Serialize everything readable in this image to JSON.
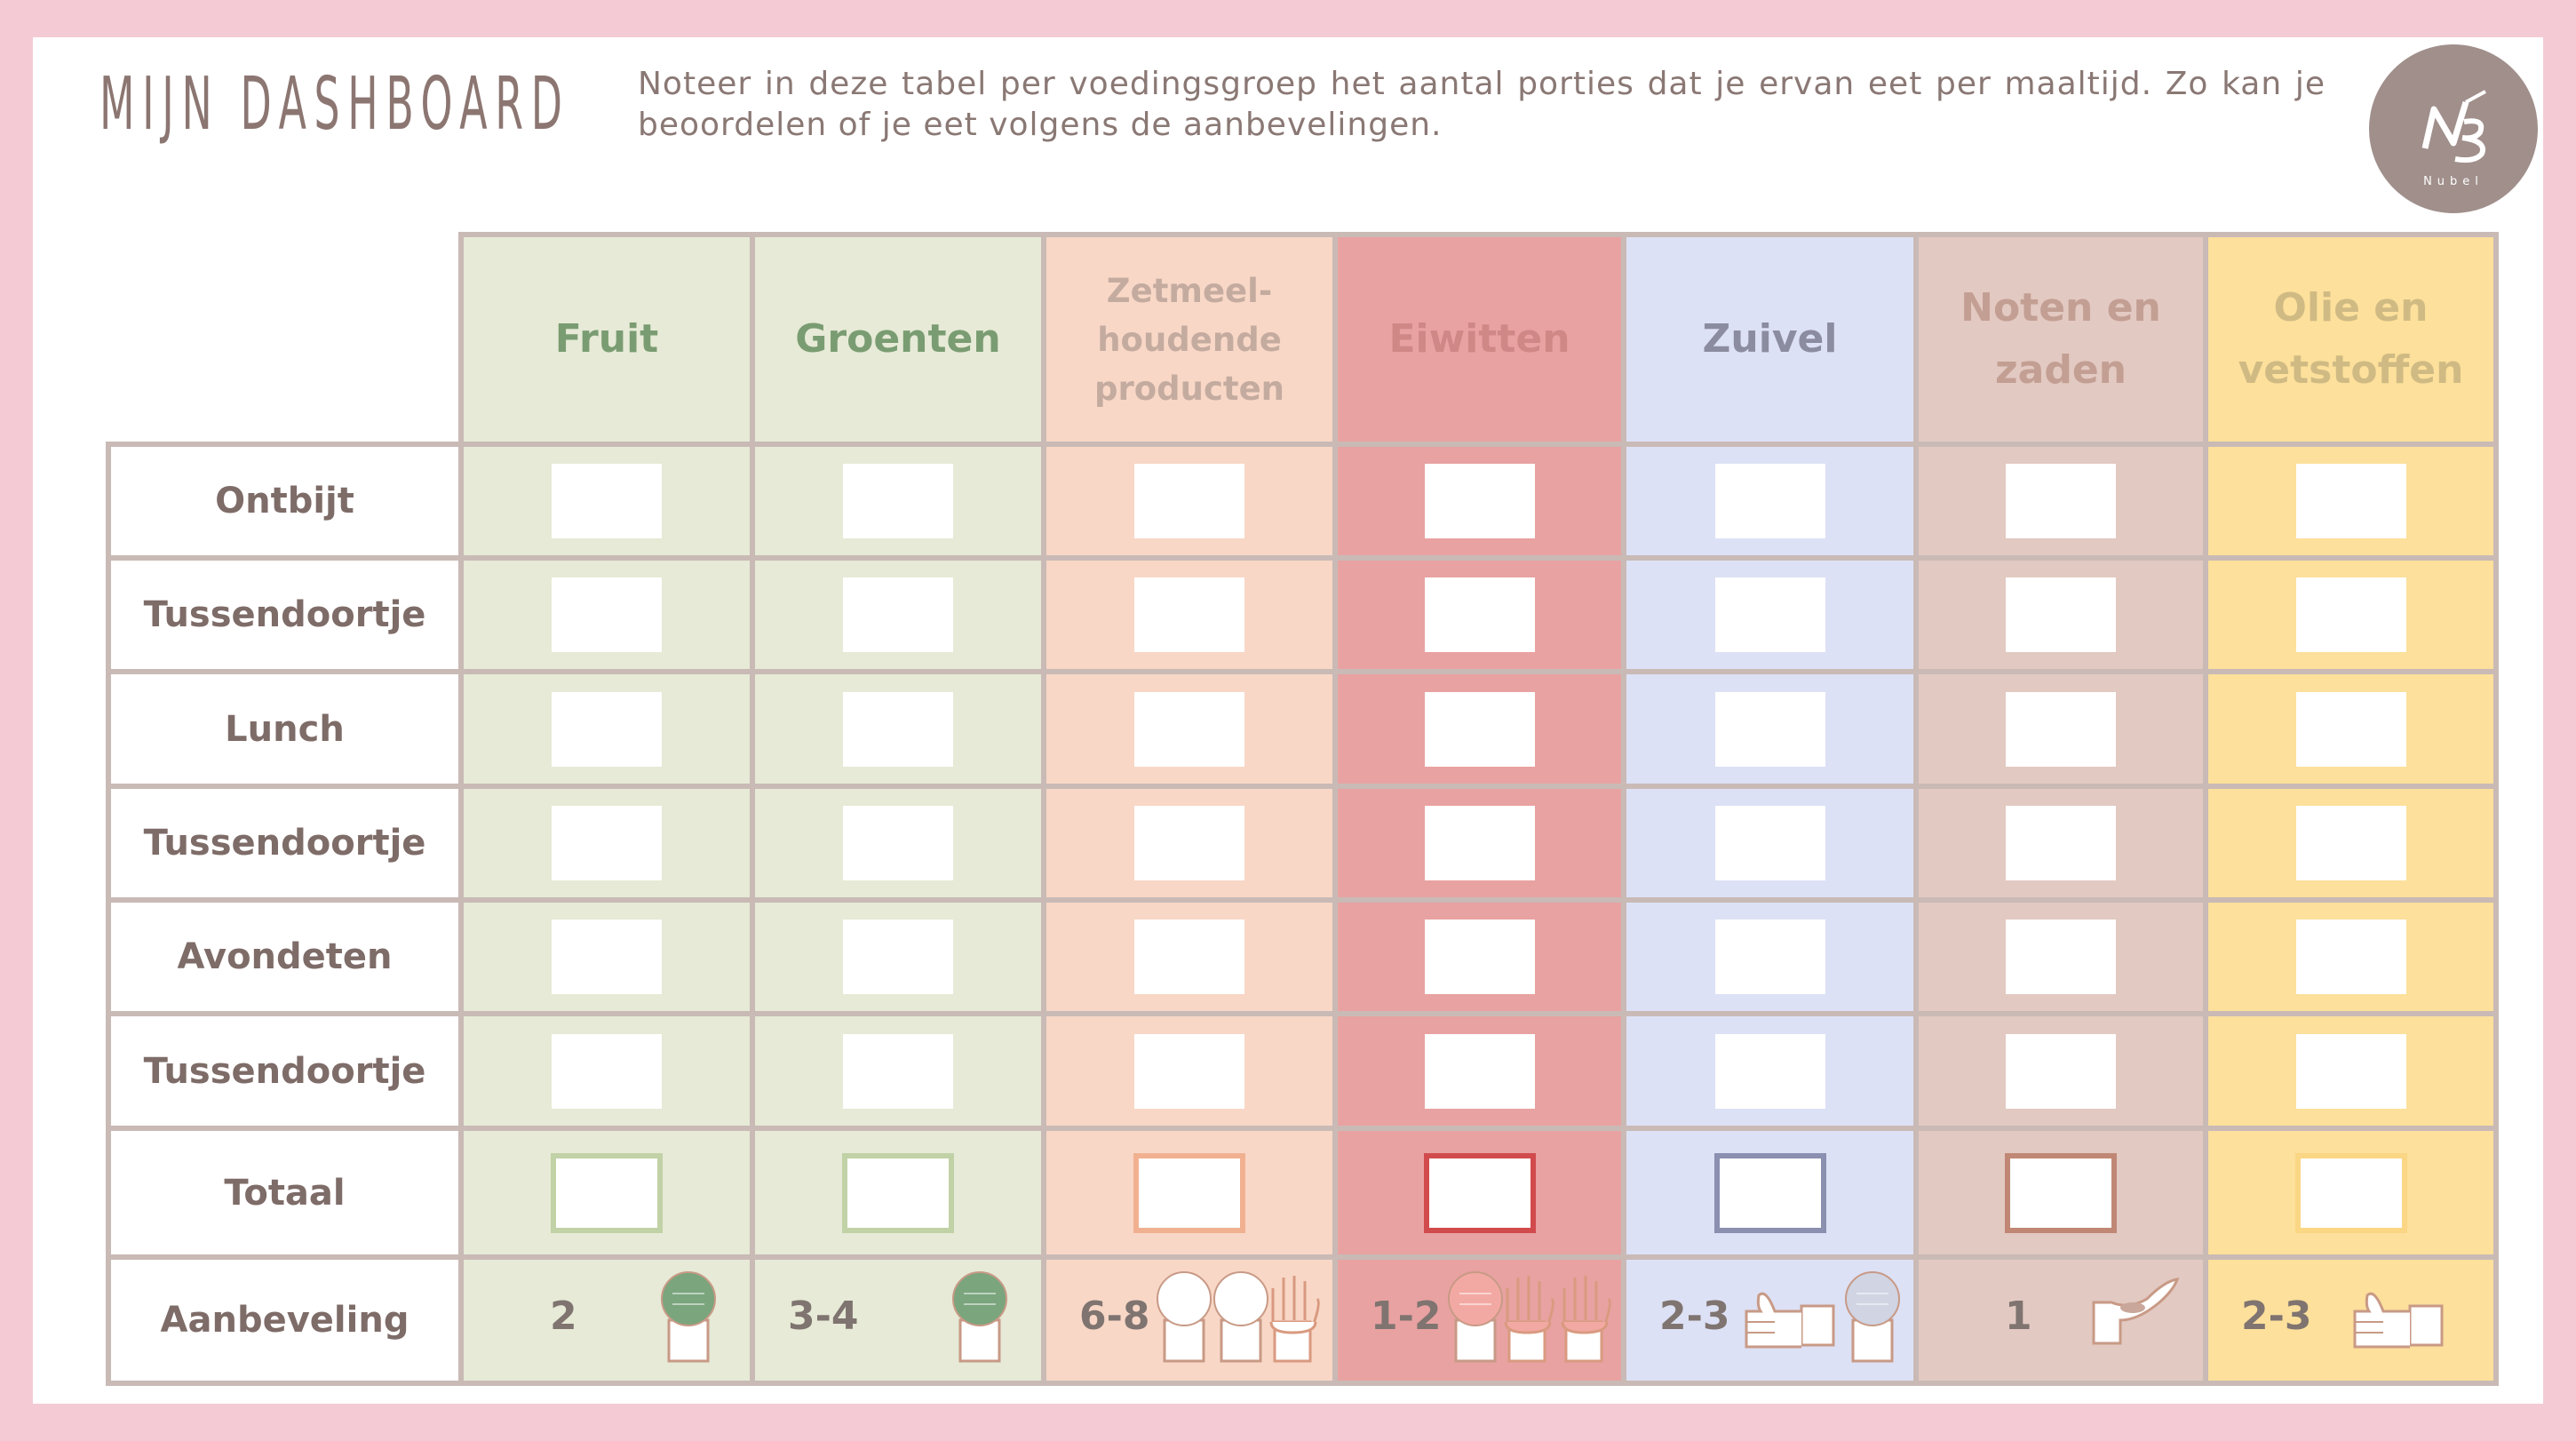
{
  "header": {
    "title": "MIJN DASHBOARD",
    "description": "Noteer in deze tabel per voedingsgroep het aantal porties dat je ervan eet per maaltijd. Zo kan je beoordelen of je eet volgens de aanbevelingen.",
    "logo_text": "Nubel"
  },
  "columns": [
    {
      "label": "Fruit",
      "bg": "#e6ead6",
      "color": "#7a9c72",
      "total_border": "#c1d2a6",
      "recommendation": "2"
    },
    {
      "label": "Groenten",
      "bg": "#e6ead6",
      "color": "#7a9c72",
      "total_border": "#c1d2a6",
      "recommendation": "3-4"
    },
    {
      "label": "Zetmeel-\nhoudende\nproducten",
      "bg": "#f8d7c6",
      "color": "#c4ab9f",
      "total_border": "#f1b191",
      "recommendation": "6-8"
    },
    {
      "label": "Eiwitten",
      "bg": "#e8a2a1",
      "color": "#cf8886",
      "total_border": "#d14b4d",
      "recommendation": "1-2"
    },
    {
      "label": "Zuivel",
      "bg": "#dde1f5",
      "color": "#8c8ca0",
      "total_border": "#8b90b1",
      "recommendation": "2-3"
    },
    {
      "label": "Noten en\nzaden",
      "bg": "#e2c9c1",
      "color": "#c39e93",
      "total_border": "#c08775",
      "recommendation": "1"
    },
    {
      "label": "Olie en\nvetstoffen",
      "bg": "#fce09b",
      "color": "#d0ba84",
      "total_border": "#fad685",
      "recommendation": "2-3"
    }
  ],
  "rows": [
    "Ontbijt",
    "Tussendoortje",
    "Lunch",
    "Tussendoortje",
    "Avondeten",
    "Tussendoortje"
  ],
  "total_label": "Totaal",
  "recommendation_label": "Aanbeveling"
}
